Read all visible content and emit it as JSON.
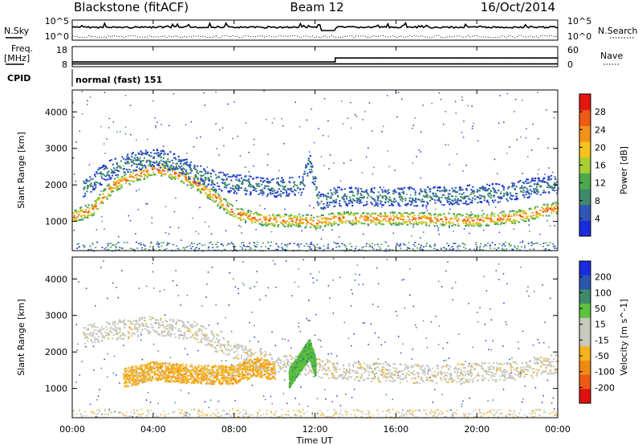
{
  "header": {
    "site": "Blackstone (fitACF)",
    "beam": "Beam 12",
    "date": "16/Oct/2014"
  },
  "top_panel": {
    "left_label": "N.Sky",
    "right_label": "N.Search",
    "left_ticks": [
      "10^5",
      "10^0"
    ],
    "right_ticks": [
      "10^5",
      "10^0"
    ]
  },
  "freq_panel": {
    "left_label_1": "Freq.",
    "left_label_2": "[MHz]",
    "right_label": "Nave",
    "left_ticks": [
      "18",
      "8"
    ],
    "right_ticks": [
      "60",
      "0"
    ],
    "freq_mhz": 10,
    "nave_before": 21,
    "nave_after": 38,
    "nave_switch_time": "13:00"
  },
  "cpid": {
    "label": "CPID",
    "value": "normal (fast) 151"
  },
  "x_axis": {
    "title": "Time UT",
    "ticks": [
      "00:00",
      "04:00",
      "08:00",
      "12:00",
      "16:00",
      "20:00",
      "00:00"
    ]
  },
  "colors": {
    "power": [
      "#1a2be0",
      "#2f56b8",
      "#3f8a6a",
      "#4caa4c",
      "#a9cf33",
      "#f6c21c",
      "#f2921a",
      "#ee5a14",
      "#e5170f"
    ],
    "velocity": [
      "#1a2be0",
      "#2c56b0",
      "#3f8a6a",
      "#5cc13c",
      "#c8c8bd",
      "#c8c8bd",
      "#f6b21c",
      "#f08a14",
      "#ee5a14",
      "#e0100d"
    ]
  },
  "chart_data": [
    {
      "type": "heatmap",
      "title": "Power",
      "xlabel": "",
      "ylabel": "Slant Range [km]",
      "ylim": [
        200,
        4600
      ],
      "yticks": [
        "1000",
        "2000",
        "3000",
        "4000"
      ],
      "colorbar_label": "Power [dB]",
      "colorbar_ticks": [
        "4",
        "8",
        "12",
        "16",
        "20",
        "24",
        "28"
      ],
      "colorbar_range": [
        0,
        32
      ],
      "bands": [
        {
          "name": "main-echo",
          "points": [
            [
              0,
              1150
            ],
            [
              1,
              1350
            ],
            [
              1.5,
              1700
            ],
            [
              2,
              2000
            ],
            [
              3,
              2250
            ],
            [
              4,
              2450
            ],
            [
              5,
              2350
            ],
            [
              6,
              2100
            ],
            [
              7,
              1700
            ],
            [
              8,
              1250
            ],
            [
              9,
              1100
            ],
            [
              10,
              1050
            ],
            [
              11,
              1050
            ],
            [
              12,
              1000
            ],
            [
              13,
              1100
            ],
            [
              16,
              1100
            ],
            [
              20,
              1050
            ],
            [
              22,
              1150
            ],
            [
              24,
              1400
            ]
          ],
          "value": 27
        },
        {
          "name": "upper-echo",
          "points": [
            [
              0.5,
              1900
            ],
            [
              1,
              2100
            ],
            [
              2,
              2500
            ],
            [
              3,
              2650
            ],
            [
              4,
              2750
            ],
            [
              5,
              2650
            ],
            [
              6,
              2350
            ],
            [
              7,
              2150
            ],
            [
              8,
              2050
            ],
            [
              10,
              1950
            ],
            [
              11.3,
              2000
            ],
            [
              11.7,
              2650
            ],
            [
              12.2,
              1500
            ],
            [
              13,
              1700
            ],
            [
              18,
              1700
            ],
            [
              21,
              1800
            ],
            [
              24,
              2050
            ]
          ],
          "value": 9
        }
      ]
    },
    {
      "type": "heatmap",
      "title": "Velocity",
      "xlabel": "Time UT",
      "ylabel": "Slant Range [km]",
      "ylim": [
        200,
        4600
      ],
      "yticks": [
        "1000",
        "2000",
        "3000",
        "4000"
      ],
      "colorbar_label": "Velocity [m s^-1]",
      "colorbar_ticks": [
        "200",
        "100",
        "50",
        "15",
        "-15",
        "-50",
        "-100",
        "-200"
      ],
      "bands": [
        {
          "name": "ground-scatter",
          "points": [
            [
              0.5,
              2500
            ],
            [
              2,
              2600
            ],
            [
              4,
              2750
            ],
            [
              6,
              2600
            ],
            [
              8,
              2000
            ],
            [
              10,
              1700
            ],
            [
              12,
              1600
            ],
            [
              13,
              1500
            ],
            [
              18,
              1400
            ],
            [
              22,
              1500
            ],
            [
              24,
              1700
            ]
          ],
          "value": 0
        },
        {
          "name": "negative-flow",
          "points": [
            [
              2.5,
              1300
            ],
            [
              4,
              1500
            ],
            [
              6,
              1400
            ],
            [
              8,
              1400
            ],
            [
              9,
              1600
            ],
            [
              10,
              1500
            ]
          ],
          "value": -40
        },
        {
          "name": "positive-flow",
          "points": [
            [
              10.7,
              1300
            ],
            [
              11.2,
              1700
            ],
            [
              11.7,
              2100
            ],
            [
              12.0,
              1600
            ]
          ],
          "value": 40
        }
      ]
    }
  ]
}
